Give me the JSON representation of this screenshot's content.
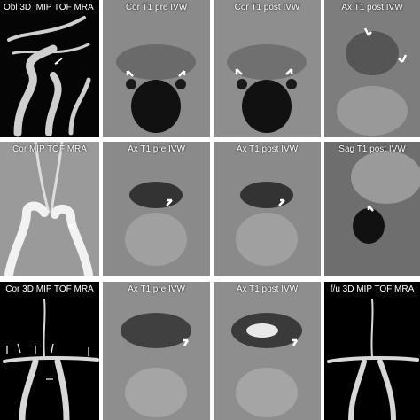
{
  "panels": [
    {
      "label": "Obl 3D  MIP TOF MRA"
    },
    {
      "label": "Cor T1 pre IVW"
    },
    {
      "label": "Cor T1 post IVW"
    },
    {
      "label": "Ax T1 post IVW"
    },
    {
      "label": "Cor MIP TOF MRA"
    },
    {
      "label": "Ax T1 pre IVW"
    },
    {
      "label": "Ax T1 post IVW"
    },
    {
      "label": "Sag T1 post IVW"
    },
    {
      "label": "Cor 3D MIP TOF MRA"
    },
    {
      "label": "Ax T1 pre IVW"
    },
    {
      "label": "Ax T1 post IVW"
    },
    {
      "label": "f/u 3D MIP TOF MRA"
    }
  ]
}
